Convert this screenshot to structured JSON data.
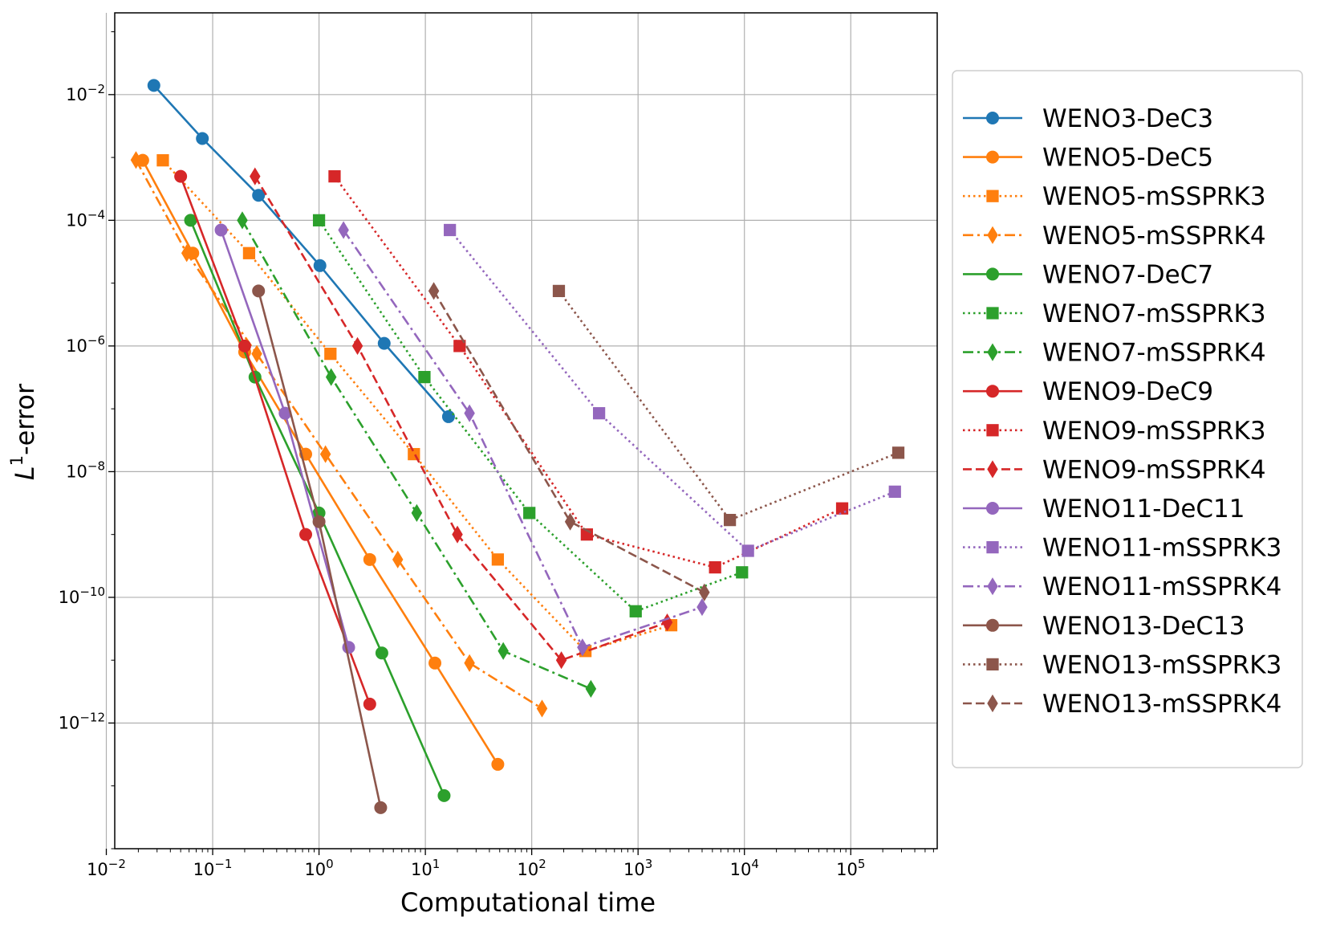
{
  "chart_data": {
    "type": "line",
    "x_scale": "log",
    "y_scale": "log",
    "xlabel": "Computational time",
    "ylabel_main": "L",
    "ylabel_sup": "1",
    "ylabel_rest": "-error",
    "xlim": [
      0.012,
      650000
    ],
    "ylim": [
      1e-14,
      0.2
    ],
    "grid": true,
    "legend_position": "right",
    "x_ticks": [
      {
        "value": 0.01,
        "base": "10",
        "exp": "−2"
      },
      {
        "value": 0.1,
        "base": "10",
        "exp": "−1"
      },
      {
        "value": 1,
        "base": "10",
        "exp": "0"
      },
      {
        "value": 10,
        "base": "10",
        "exp": "1"
      },
      {
        "value": 100,
        "base": "10",
        "exp": "2"
      },
      {
        "value": 1000,
        "base": "10",
        "exp": "3"
      },
      {
        "value": 10000,
        "base": "10",
        "exp": "4"
      },
      {
        "value": 100000,
        "base": "10",
        "exp": "5"
      }
    ],
    "y_ticks": [
      {
        "value": 0.01,
        "base": "10",
        "exp": "−2"
      },
      {
        "value": 0.0001,
        "base": "10",
        "exp": "−4"
      },
      {
        "value": 1e-06,
        "base": "10",
        "exp": "−6"
      },
      {
        "value": 1e-08,
        "base": "10",
        "exp": "−8"
      },
      {
        "value": 1e-10,
        "base": "10",
        "exp": "−10"
      },
      {
        "value": 1e-12,
        "base": "10",
        "exp": "−12"
      }
    ],
    "series": [
      {
        "name": "WENO3-DeC3",
        "color": "#1f77b4",
        "dash": "solid",
        "marker": "circle",
        "x": [
          0.028,
          0.08,
          0.27,
          1.02,
          4.1,
          16.5
        ],
        "y": [
          0.014,
          0.002,
          0.00025,
          1.9e-05,
          1.1e-06,
          7.5e-08
        ]
      },
      {
        "name": "WENO5-DeC5",
        "color": "#ff7f0e",
        "dash": "solid",
        "marker": "circle",
        "x": [
          0.022,
          0.065,
          0.2,
          0.75,
          3.0,
          12.3,
          48
        ],
        "y": [
          0.0009,
          3e-05,
          8e-07,
          1.9e-08,
          4e-10,
          9e-12,
          2.2e-13
        ]
      },
      {
        "name": "WENO5-mSSPRK3",
        "color": "#ff7f0e",
        "dash": "dotted",
        "marker": "square",
        "x": [
          0.034,
          0.22,
          1.28,
          7.8,
          48,
          320,
          2050
        ],
        "y": [
          0.0009,
          3e-05,
          7.5e-07,
          1.9e-08,
          4e-10,
          1.4e-11,
          3.6e-11
        ]
      },
      {
        "name": "WENO5-mSSPRK4",
        "color": "#ff7f0e",
        "dash": "dashdot",
        "marker": "diamond",
        "x": [
          0.019,
          0.057,
          0.26,
          1.15,
          5.5,
          26,
          125
        ],
        "y": [
          0.00091,
          3e-05,
          7.5e-07,
          1.9e-08,
          4e-10,
          9e-12,
          1.7e-12
        ]
      },
      {
        "name": "WENO7-DeC7",
        "color": "#2ca02c",
        "dash": "solid",
        "marker": "circle",
        "x": [
          0.062,
          0.25,
          1.0,
          3.9,
          15
        ],
        "y": [
          0.0001,
          3.2e-07,
          2.2e-09,
          1.3e-11,
          7e-14
        ]
      },
      {
        "name": "WENO7-mSSPRK3",
        "color": "#2ca02c",
        "dash": "dotted",
        "marker": "square",
        "x": [
          1.0,
          9.8,
          95,
          950,
          9500
        ],
        "y": [
          0.0001,
          3.2e-07,
          2.2e-09,
          6e-11,
          2.5e-10
        ]
      },
      {
        "name": "WENO7-mSSPRK4",
        "color": "#2ca02c",
        "dash": "dashdot",
        "marker": "diamond",
        "x": [
          0.19,
          1.3,
          8.3,
          54,
          360
        ],
        "y": [
          0.0001,
          3.2e-07,
          2.2e-09,
          1.4e-11,
          3.5e-12
        ]
      },
      {
        "name": "WENO9-DeC9",
        "color": "#d62728",
        "dash": "solid",
        "marker": "circle",
        "x": [
          0.05,
          0.2,
          0.75,
          3.0
        ],
        "y": [
          0.0005,
          1e-06,
          1e-09,
          2e-12
        ]
      },
      {
        "name": "WENO9-mSSPRK3",
        "color": "#d62728",
        "dash": "dotted",
        "marker": "square",
        "x": [
          1.4,
          21,
          330,
          5300,
          83000
        ],
        "y": [
          0.0005,
          1e-06,
          1e-09,
          3e-10,
          2.6e-09
        ]
      },
      {
        "name": "WENO9-mSSPRK4",
        "color": "#d62728",
        "dash": "dashed",
        "marker": "diamond",
        "x": [
          0.25,
          2.3,
          20,
          190,
          1880
        ],
        "y": [
          0.0005,
          1e-06,
          1e-09,
          1e-11,
          4e-11
        ]
      },
      {
        "name": "WENO11-DeC11",
        "color": "#9467bd",
        "dash": "solid",
        "marker": "circle",
        "x": [
          0.12,
          0.48,
          1.9
        ],
        "y": [
          7e-05,
          8.5e-08,
          1.6e-11
        ]
      },
      {
        "name": "WENO11-mSSPRK3",
        "color": "#9467bd",
        "dash": "dotted",
        "marker": "square",
        "x": [
          17,
          430,
          10800,
          260000
        ],
        "y": [
          7e-05,
          8.5e-08,
          5.5e-10,
          4.8e-09
        ]
      },
      {
        "name": "WENO11-mSSPRK4",
        "color": "#9467bd",
        "dash": "dashdot",
        "marker": "diamond",
        "x": [
          1.7,
          26,
          300,
          4000
        ],
        "y": [
          7e-05,
          8.5e-08,
          1.6e-11,
          7e-11
        ]
      },
      {
        "name": "WENO13-DeC13",
        "color": "#8c564b",
        "dash": "solid",
        "marker": "circle",
        "x": [
          0.27,
          1.0,
          3.8
        ],
        "y": [
          7.5e-06,
          1.6e-09,
          4.5e-14
        ]
      },
      {
        "name": "WENO13-mSSPRK3",
        "color": "#8c564b",
        "dash": "dotted",
        "marker": "square",
        "x": [
          180,
          7300,
          280000
        ],
        "y": [
          7.5e-06,
          1.7e-09,
          2e-08
        ]
      },
      {
        "name": "WENO13-mSSPRK4",
        "color": "#8c564b",
        "dash": "dashed",
        "marker": "diamond",
        "x": [
          12,
          230,
          4200
        ],
        "y": [
          7.5e-06,
          1.6e-09,
          1.2e-10
        ]
      }
    ]
  }
}
